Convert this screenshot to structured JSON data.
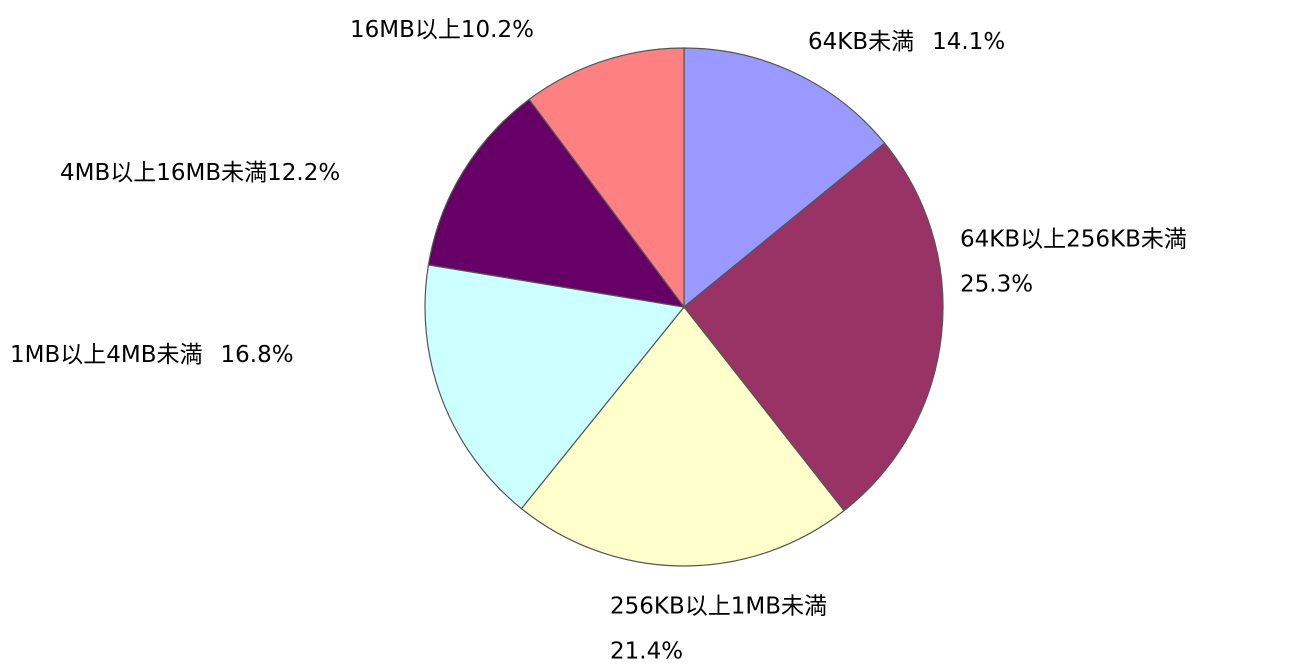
{
  "chart_data": {
    "type": "pie",
    "categories": [
      "64KB未満",
      "64KB以上256KB未満",
      "256KB以上1MB未満",
      "1MB以上4MB未満",
      "4MB以上16MB未満",
      "16MB以上"
    ],
    "values": [
      14.1,
      25.3,
      21.4,
      16.8,
      12.2,
      10.2
    ],
    "value_labels": [
      "14.1%",
      "25.3%",
      "21.4%",
      "16.8%",
      "12.2%",
      "10.2%"
    ],
    "colors": [
      "#9999ff",
      "#993366",
      "#ffffcc",
      "#ccffff",
      "#660066",
      "#ff8080"
    ]
  }
}
